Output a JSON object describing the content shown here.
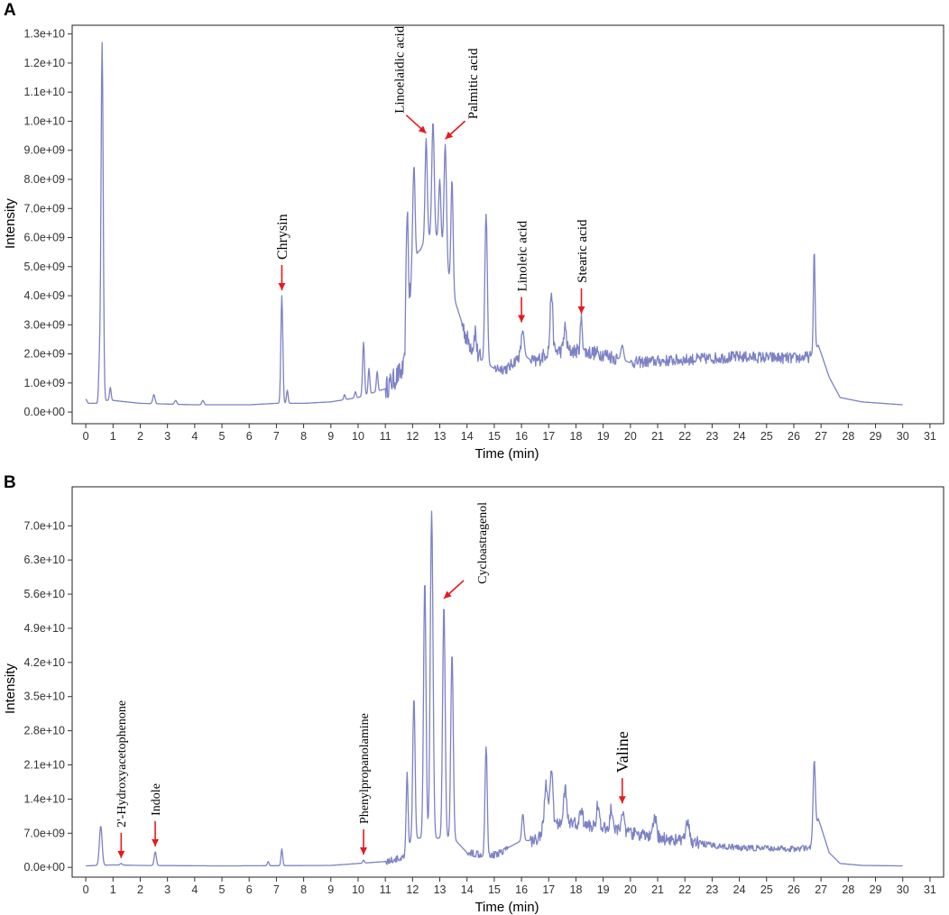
{
  "figure": {
    "accent_color": "#7c82c4",
    "arrow_color": "#e8191c"
  },
  "chart_data": [
    {
      "type": "line",
      "panel": "A",
      "xlabel": "Time (min)",
      "ylabel": "Intensity",
      "xlim": [
        -0.5,
        31.5
      ],
      "ylim": [
        -400000000.0,
        13300000000.0
      ],
      "x_ticks": [
        0,
        1,
        2,
        3,
        4,
        5,
        6,
        7,
        8,
        9,
        10,
        11,
        12,
        13,
        14,
        15,
        16,
        17,
        18,
        19,
        20,
        21,
        22,
        23,
        24,
        25,
        26,
        27,
        28,
        29,
        30,
        31
      ],
      "x_tick_labels": [
        "0",
        "1",
        "2",
        "3",
        "4",
        "5",
        "6",
        "7",
        "8",
        "9",
        "10",
        "11",
        "12",
        "13",
        "14",
        "15",
        "16",
        "17",
        "18",
        "19",
        "20",
        "21",
        "22",
        "23",
        "24",
        "25",
        "26",
        "27",
        "28",
        "29",
        "30",
        "31"
      ],
      "y_ticks": [
        0,
        1000000000.0,
        2000000000.0,
        3000000000.0,
        4000000000.0,
        5000000000.0,
        6000000000.0,
        7000000000.0,
        8000000000.0,
        9000000000.0,
        10000000000.0,
        11000000000.0,
        12000000000.0,
        13000000000.0
      ],
      "y_tick_labels": [
        "0.0e+00",
        "1.0e+09",
        "2.0e+09",
        "3.0e+09",
        "4.0e+09",
        "5.0e+09",
        "6.0e+09",
        "7.0e+09",
        "8.0e+09",
        "9.0e+09",
        "1.0e+10",
        "1.1e+10",
        "1.2e+10",
        "1.3e+10"
      ],
      "series": [
        {
          "color": "#7c82c4",
          "baseline": [
            [
              0,
              400000000.0
            ],
            [
              0.1,
              300000000.0
            ],
            [
              0.4,
              300000000.0
            ],
            [
              0.7,
              400000000.0
            ],
            [
              1,
              400000000.0
            ],
            [
              2,
              300000000.0
            ],
            [
              4,
              250000000.0
            ],
            [
              6,
              250000000.0
            ],
            [
              7,
              300000000.0
            ],
            [
              8,
              300000000.0
            ],
            [
              9,
              350000000.0
            ],
            [
              10,
              500000000.0
            ],
            [
              11,
              800000000.0
            ],
            [
              11.7,
              1500000000.0
            ],
            [
              12,
              5000000000.0
            ],
            [
              12.5,
              6000000000.0
            ],
            [
              13,
              6000000000.0
            ],
            [
              13.5,
              4000000000.0
            ],
            [
              14,
              2500000000.0
            ],
            [
              14.5,
              1800000000.0
            ],
            [
              15,
              1500000000.0
            ],
            [
              15.5,
              1500000000.0
            ],
            [
              16,
              2000000000.0
            ],
            [
              16.5,
              1700000000.0
            ],
            [
              17,
              2100000000.0
            ],
            [
              18,
              2100000000.0
            ],
            [
              19,
              2000000000.0
            ],
            [
              20,
              1700000000.0
            ],
            [
              22,
              1800000000.0
            ],
            [
              24,
              1900000000.0
            ],
            [
              26,
              1850000000.0
            ],
            [
              26.6,
              1900000000.0
            ],
            [
              26.9,
              2300000000.0
            ],
            [
              27.3,
              1200000000.0
            ],
            [
              27.7,
              500000000.0
            ],
            [
              28.5,
              350000000.0
            ],
            [
              30,
              250000000.0
            ]
          ],
          "peaks": [
            [
              0.0,
              450000000.0,
              0.03
            ],
            [
              0.5,
              1600000000.0,
              0.03
            ],
            [
              0.6,
              12700000000.0,
              0.04
            ],
            [
              0.9,
              850000000.0,
              0.03
            ],
            [
              2.5,
              600000000.0,
              0.04
            ],
            [
              3.3,
              400000000.0,
              0.04
            ],
            [
              4.3,
              400000000.0,
              0.04
            ],
            [
              7.2,
              4000000000.0,
              0.035
            ],
            [
              7.4,
              750000000.0,
              0.03
            ],
            [
              9.5,
              600000000.0,
              0.03
            ],
            [
              9.9,
              700000000.0,
              0.03
            ],
            [
              10.2,
              2400000000.0,
              0.035
            ],
            [
              10.4,
              1500000000.0,
              0.03
            ],
            [
              10.7,
              1400000000.0,
              0.03
            ],
            [
              11.8,
              7000000000.0,
              0.04
            ],
            [
              12.05,
              8500000000.0,
              0.04
            ],
            [
              12.2,
              5500000000.0,
              0.04
            ],
            [
              12.5,
              9400000000.0,
              0.04
            ],
            [
              12.75,
              10000000000.0,
              0.045
            ],
            [
              13.0,
              8000000000.0,
              0.04
            ],
            [
              13.2,
              9200000000.0,
              0.045
            ],
            [
              13.45,
              8000000000.0,
              0.04
            ],
            [
              14.3,
              2800000000.0,
              0.04
            ],
            [
              14.7,
              6800000000.0,
              0.045
            ],
            [
              16.05,
              2800000000.0,
              0.05
            ],
            [
              17.1,
              4200000000.0,
              0.045
            ],
            [
              17.6,
              2900000000.0,
              0.05
            ],
            [
              18.2,
              3200000000.0,
              0.04
            ],
            [
              19.7,
              2300000000.0,
              0.05
            ],
            [
              26.75,
              5600000000.0,
              0.03
            ]
          ],
          "noise": [
            [
              11.0,
              12.0,
              400000000.0
            ],
            [
              13.8,
              14.5,
              350000000.0
            ],
            [
              15.0,
              16.0,
              200000000.0
            ],
            [
              16.3,
              19.5,
              250000000.0
            ],
            [
              20.0,
              26.6,
              200000000.0
            ]
          ]
        }
      ],
      "annotations": [
        {
          "text": "Chrysin",
          "x": 7.2,
          "y": 4000000000.0,
          "rotate": -90,
          "size": 16
        },
        {
          "text": "Linoelaidic acid",
          "x": 12.5,
          "y": 9400000000.0,
          "rotate": -90,
          "size": 15
        },
        {
          "text": "Palmitic acid",
          "x": 13.2,
          "y": 9200000000.0,
          "rotate": -90,
          "size": 15
        },
        {
          "text": "Linoleic acid",
          "x": 16.0,
          "y": 2900000000.0,
          "rotate": -90,
          "size": 15
        },
        {
          "text": "Stearic acid",
          "x": 18.2,
          "y": 3200000000.0,
          "rotate": -90,
          "size": 15
        }
      ]
    },
    {
      "type": "line",
      "panel": "B",
      "xlabel": "Time (min)",
      "ylabel": "Intensity",
      "xlim": [
        -0.5,
        31.5
      ],
      "ylim": [
        -2000000000.0,
        78000000000.0
      ],
      "x_ticks": [
        0,
        1,
        2,
        3,
        4,
        5,
        6,
        7,
        8,
        9,
        10,
        11,
        12,
        13,
        14,
        15,
        16,
        17,
        18,
        19,
        20,
        21,
        22,
        23,
        24,
        25,
        26,
        27,
        28,
        29,
        30,
        31
      ],
      "x_tick_labels": [
        "0",
        "1",
        "2",
        "3",
        "4",
        "5",
        "6",
        "7",
        "8",
        "9",
        "10",
        "11",
        "12",
        "13",
        "14",
        "15",
        "16",
        "17",
        "18",
        "19",
        "20",
        "21",
        "22",
        "23",
        "24",
        "25",
        "26",
        "27",
        "28",
        "29",
        "30",
        "31"
      ],
      "y_ticks": [
        0,
        7000000000.0,
        14000000000.0,
        21000000000.0,
        28000000000.0,
        35000000000.0,
        42000000000.0,
        49000000000.0,
        56000000000.0,
        63000000000.0,
        70000000000.0
      ],
      "y_tick_labels": [
        "0.0e+00",
        "7.0e+09",
        "1.4e+10",
        "2.1e+10",
        "2.8e+10",
        "3.5e+10",
        "4.2e+10",
        "4.9e+10",
        "5.6e+10",
        "6.3e+10",
        "7.0e+10"
      ],
      "series": [
        {
          "color": "#7c82c4",
          "baseline": [
            [
              0,
              300000000.0
            ],
            [
              0.4,
              400000000.0
            ],
            [
              1,
              500000000.0
            ],
            [
              2,
              400000000.0
            ],
            [
              5,
              300000000.0
            ],
            [
              9,
              400000000.0
            ],
            [
              10,
              800000000.0
            ],
            [
              11,
              1200000000.0
            ],
            [
              11.7,
              2000000000.0
            ],
            [
              12,
              6000000000.0
            ],
            [
              13.5,
              6000000000.0
            ],
            [
              14,
              3000000000.0
            ],
            [
              15,
              2500000000.0
            ],
            [
              16,
              5500000000.0
            ],
            [
              16.5,
              5500000000.0
            ],
            [
              17,
              9000000000.0
            ],
            [
              18,
              9000000000.0
            ],
            [
              19,
              8000000000.0
            ],
            [
              20,
              7000000000.0
            ],
            [
              21,
              6000000000.0
            ],
            [
              22,
              5500000000.0
            ],
            [
              23,
              4500000000.0
            ],
            [
              24,
              4000000000.0
            ],
            [
              26,
              3800000000.0
            ],
            [
              26.6,
              4000000000.0
            ],
            [
              26.9,
              10000000000.0
            ],
            [
              27.3,
              3000000000.0
            ],
            [
              27.7,
              800000000.0
            ],
            [
              28.5,
              400000000.0
            ],
            [
              30,
              300000000.0
            ]
          ],
          "peaks": [
            [
              0.55,
              8500000000.0,
              0.05
            ],
            [
              1.3,
              800000000.0,
              0.04
            ],
            [
              2.55,
              3200000000.0,
              0.04
            ],
            [
              6.7,
              1200000000.0,
              0.03
            ],
            [
              7.2,
              3800000000.0,
              0.03
            ],
            [
              10.2,
              1500000000.0,
              0.03
            ],
            [
              11.8,
              19000000000.0,
              0.035
            ],
            [
              12.05,
              35000000000.0,
              0.04
            ],
            [
              12.45,
              59000000000.0,
              0.045
            ],
            [
              12.7,
              73000000000.0,
              0.05
            ],
            [
              13.15,
              54000000000.0,
              0.045
            ],
            [
              13.45,
              44000000000.0,
              0.045
            ],
            [
              14.7,
              25000000000.0,
              0.04
            ],
            [
              16.05,
              11000000000.0,
              0.04
            ],
            [
              16.9,
              17000000000.0,
              0.06
            ],
            [
              17.1,
              20000000000.0,
              0.05
            ],
            [
              17.6,
              16000000000.0,
              0.06
            ],
            [
              18.2,
              12000000000.0,
              0.05
            ],
            [
              18.8,
              13000000000.0,
              0.05
            ],
            [
              19.3,
              12000000000.0,
              0.05
            ],
            [
              19.7,
              12000000000.0,
              0.05
            ],
            [
              20.9,
              10000000000.0,
              0.06
            ],
            [
              22.1,
              9000000000.0,
              0.06
            ],
            [
              26.75,
              22000000000.0,
              0.04
            ]
          ],
          "noise": [
            [
              11.0,
              12.0,
              700000000.0
            ],
            [
              14.0,
              15.5,
              800000000.0
            ],
            [
              16.3,
              22.5,
              1300000000.0
            ],
            [
              22.5,
              26.6,
              600000000.0
            ]
          ]
        }
      ],
      "annotations": [
        {
          "text": "2'-Hydroxyacetophenone",
          "x": 1.3,
          "y": 800000000.0,
          "rotate": -90,
          "size": 14
        },
        {
          "text": "Indole",
          "x": 2.55,
          "y": 3200000000.0,
          "rotate": -90,
          "size": 14
        },
        {
          "text": "Phenylpropanolamine",
          "x": 10.2,
          "y": 1500000000.0,
          "rotate": -90,
          "size": 14
        },
        {
          "text": "Cycloastragenol",
          "x": 13.15,
          "y": 54000000000.0,
          "rotate": -90,
          "size": 14
        },
        {
          "text": "Valine",
          "x": 19.7,
          "y": 12000000000.0,
          "rotate": -90,
          "size": 18
        }
      ]
    }
  ]
}
